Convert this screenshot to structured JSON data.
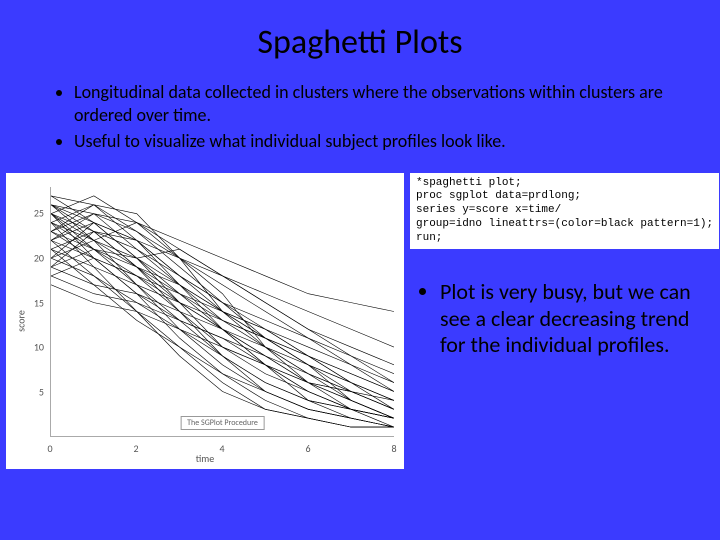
{
  "title": "Spaghetti Plots",
  "top_bullets": [
    "Longitudinal data collected in clusters where the observations within clusters are ordered over time.",
    "Useful to visualize what individual subject profiles look like."
  ],
  "code_lines": [
    "*spaghetti plot;",
    "proc sgplot data=prdlong;",
    "series y=score x=time/",
    "group=idno lineattrs=(color=black pattern=1);",
    "run;"
  ],
  "right_bullet": "Plot is very busy, but we can see a clear decreasing trend for the individual profiles.",
  "chart": {
    "type": "line-spaghetti",
    "background_color": "#ffffff",
    "line_color": "#000000",
    "line_width": 0.6,
    "xlabel": "time",
    "ylabel": "score",
    "xlim": [
      0,
      8
    ],
    "ylim": [
      0,
      28
    ],
    "xticks": [
      0,
      2,
      4,
      6,
      8
    ],
    "yticks": [
      5,
      10,
      15,
      20,
      25
    ],
    "legend_text": "The SGPlot Procedure",
    "series": [
      [
        26,
        24,
        20,
        15,
        10,
        8,
        4,
        3,
        2
      ],
      [
        25,
        23,
        22,
        18,
        14,
        12,
        9,
        6,
        4
      ],
      [
        27,
        26,
        25,
        20,
        16,
        10,
        7,
        5,
        3
      ],
      [
        24,
        22,
        19,
        17,
        13,
        11,
        8,
        4,
        2
      ],
      [
        23,
        21,
        20,
        21,
        18,
        15,
        12,
        10,
        8
      ],
      [
        22,
        20,
        18,
        14,
        10,
        7,
        5,
        3,
        2
      ],
      [
        21,
        23,
        19,
        15,
        12,
        9,
        6,
        5,
        3
      ],
      [
        25,
        20,
        16,
        13,
        11,
        8,
        6,
        4,
        2
      ],
      [
        20,
        22,
        24,
        20,
        14,
        10,
        6,
        5,
        4
      ],
      [
        26,
        25,
        24,
        22,
        20,
        18,
        16,
        15,
        14
      ],
      [
        19,
        17,
        16,
        14,
        12,
        10,
        8,
        6,
        4
      ],
      [
        24,
        21,
        17,
        13,
        9,
        6,
        4,
        3,
        1
      ],
      [
        23,
        25,
        21,
        17,
        14,
        11,
        9,
        7,
        5
      ],
      [
        18,
        16,
        15,
        13,
        11,
        9,
        7,
        5,
        3
      ],
      [
        27,
        24,
        20,
        16,
        12,
        8,
        5,
        3,
        2
      ],
      [
        22,
        24,
        22,
        18,
        15,
        13,
        11,
        9,
        7
      ],
      [
        21,
        19,
        17,
        15,
        13,
        11,
        9,
        7,
        5
      ],
      [
        25,
        21,
        18,
        16,
        14,
        12,
        10,
        8,
        6
      ],
      [
        20,
        18,
        15,
        12,
        9,
        6,
        4,
        2,
        1
      ],
      [
        26,
        22,
        17,
        12,
        8,
        5,
        3,
        2,
        1
      ],
      [
        24,
        26,
        23,
        19,
        15,
        11,
        8,
        5,
        3
      ],
      [
        19,
        21,
        19,
        16,
        13,
        10,
        7,
        4,
        2
      ],
      [
        23,
        20,
        16,
        11,
        7,
        4,
        2,
        1,
        1
      ],
      [
        17,
        15,
        14,
        12,
        10,
        8,
        6,
        4,
        2
      ],
      [
        25,
        27,
        24,
        21,
        18,
        15,
        12,
        9,
        6
      ],
      [
        22,
        18,
        14,
        10,
        6,
        3,
        2,
        1,
        1
      ],
      [
        20,
        24,
        22,
        20,
        18,
        16,
        14,
        12,
        10
      ],
      [
        18,
        20,
        18,
        15,
        12,
        9,
        6,
        3,
        2
      ],
      [
        26,
        23,
        19,
        14,
        9,
        5,
        3,
        2,
        1
      ],
      [
        21,
        17,
        13,
        10,
        7,
        5,
        3,
        2,
        1
      ],
      [
        24,
        19,
        14,
        9,
        5,
        3,
        2,
        1,
        1
      ],
      [
        23,
        26,
        22,
        17,
        12,
        8,
        5,
        3,
        2
      ],
      [
        19,
        23,
        21,
        18,
        15,
        12,
        9,
        6,
        3
      ],
      [
        25,
        22,
        20,
        17,
        14,
        11,
        8,
        6,
        4
      ],
      [
        22,
        25,
        23,
        20,
        17,
        14,
        11,
        8,
        5
      ]
    ]
  },
  "colors": {
    "slide_bg": "#3b3bff",
    "panel_bg": "#ffffff",
    "text": "#000000"
  },
  "fonts": {
    "title_size": 34,
    "bullet_size": 18,
    "right_bullet_size": 22,
    "code_size": 11
  }
}
